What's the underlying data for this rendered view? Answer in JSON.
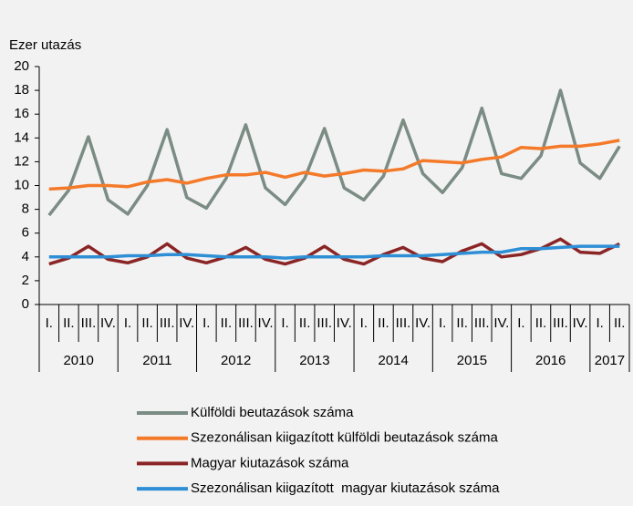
{
  "chart_data": {
    "type": "line",
    "y_axis_title": "Ezer utazás",
    "categories": [
      "I.",
      "II.",
      "III.",
      "IV.",
      "I.",
      "II.",
      "III.",
      "IV.",
      "I.",
      "II.",
      "III.",
      "IV.",
      "I.",
      "II.",
      "III.",
      "IV.",
      "I.",
      "II.",
      "III.",
      "IV.",
      "I.",
      "II.",
      "III.",
      "IV.",
      "I.",
      "II.",
      "III.",
      "IV.",
      "I.",
      "II."
    ],
    "years": [
      "2010",
      "2011",
      "2012",
      "2013",
      "2014",
      "2015",
      "2016",
      "2017"
    ],
    "series": [
      {
        "name": "Külföldi beutazások száma",
        "color": "#7a8c84",
        "values": [
          7.5,
          9.6,
          14.1,
          8.8,
          7.6,
          10.0,
          14.7,
          9.0,
          8.1,
          10.6,
          15.1,
          9.8,
          8.4,
          10.6,
          14.8,
          9.8,
          8.8,
          10.8,
          15.5,
          11.0,
          9.4,
          11.5,
          16.5,
          11.0,
          10.6,
          12.5,
          18.0,
          11.9,
          10.6,
          13.3
        ]
      },
      {
        "name": "Szezonálisan kiigazított külföldi beutazások száma",
        "color": "#f47a2a",
        "values": [
          9.7,
          9.8,
          10.0,
          10.0,
          9.9,
          10.3,
          10.5,
          10.2,
          10.6,
          10.9,
          10.9,
          11.1,
          10.7,
          11.1,
          10.8,
          11.0,
          11.3,
          11.2,
          11.4,
          12.1,
          12.0,
          11.9,
          12.2,
          12.4,
          13.2,
          13.1,
          13.3,
          13.3,
          13.5,
          13.8
        ]
      },
      {
        "name": "Magyar kiutazások száma",
        "color": "#8b2525",
        "values": [
          3.4,
          3.9,
          4.9,
          3.8,
          3.5,
          4.0,
          5.1,
          3.9,
          3.5,
          4.0,
          4.8,
          3.8,
          3.4,
          3.9,
          4.9,
          3.8,
          3.4,
          4.2,
          4.8,
          3.9,
          3.6,
          4.5,
          5.1,
          4.0,
          4.2,
          4.7,
          5.5,
          4.4,
          4.3,
          5.1
        ]
      },
      {
        "name": "Szezonálisan kiigazított  magyar kiutazások száma",
        "color": "#2e8fd6",
        "values": [
          4.0,
          4.0,
          4.0,
          4.0,
          4.1,
          4.1,
          4.2,
          4.2,
          4.1,
          4.0,
          4.0,
          4.0,
          3.9,
          4.0,
          4.0,
          4.0,
          4.0,
          4.1,
          4.1,
          4.1,
          4.2,
          4.3,
          4.4,
          4.4,
          4.7,
          4.7,
          4.8,
          4.9,
          4.9,
          4.9
        ]
      }
    ],
    "ylim": [
      0,
      20
    ],
    "yticks": [
      0,
      2,
      4,
      6,
      8,
      10,
      12,
      14,
      16,
      18,
      20
    ],
    "grid": false
  }
}
